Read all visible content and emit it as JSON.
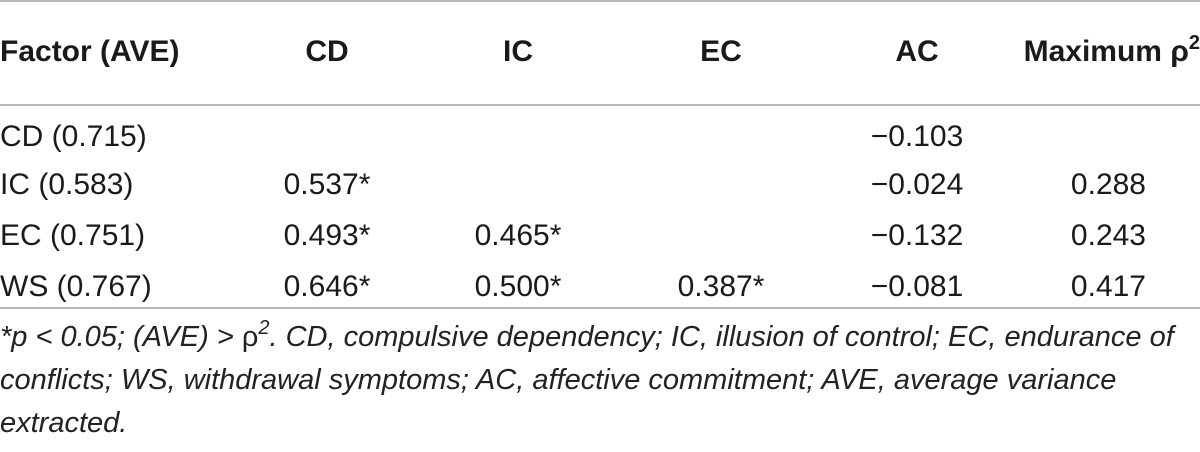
{
  "table": {
    "headers": [
      "Factor (AVE)",
      "CD",
      "IC",
      "EC",
      "AC",
      "Maximum ρ"
    ],
    "header_sup": "2",
    "rows": [
      {
        "factor": "CD (0.715)",
        "cd": "",
        "ic": "",
        "ec": "",
        "ac": "−0.103",
        "max": ""
      },
      {
        "factor": "IC (0.583)",
        "cd": "0.537*",
        "ic": "",
        "ec": "",
        "ac": "−0.024",
        "max": "0.288"
      },
      {
        "factor": "EC (0.751)",
        "cd": "0.493*",
        "ic": "0.465*",
        "ec": "",
        "ac": "−0.132",
        "max": "0.243"
      },
      {
        "factor": "WS (0.767)",
        "cd": "0.646*",
        "ic": "0.500*",
        "ec": "0.387*",
        "ac": "−0.081",
        "max": "0.417"
      }
    ]
  },
  "footnote": {
    "part1": "*p < 0.05; (AVE) > ",
    "rho": "ρ",
    "sup": "2",
    "part2": ". CD, compulsive dependency; IC, illusion of control; EC, endurance of conflicts; WS, withdrawal symptoms; AC, affective commitment; AVE, average variance extracted."
  }
}
